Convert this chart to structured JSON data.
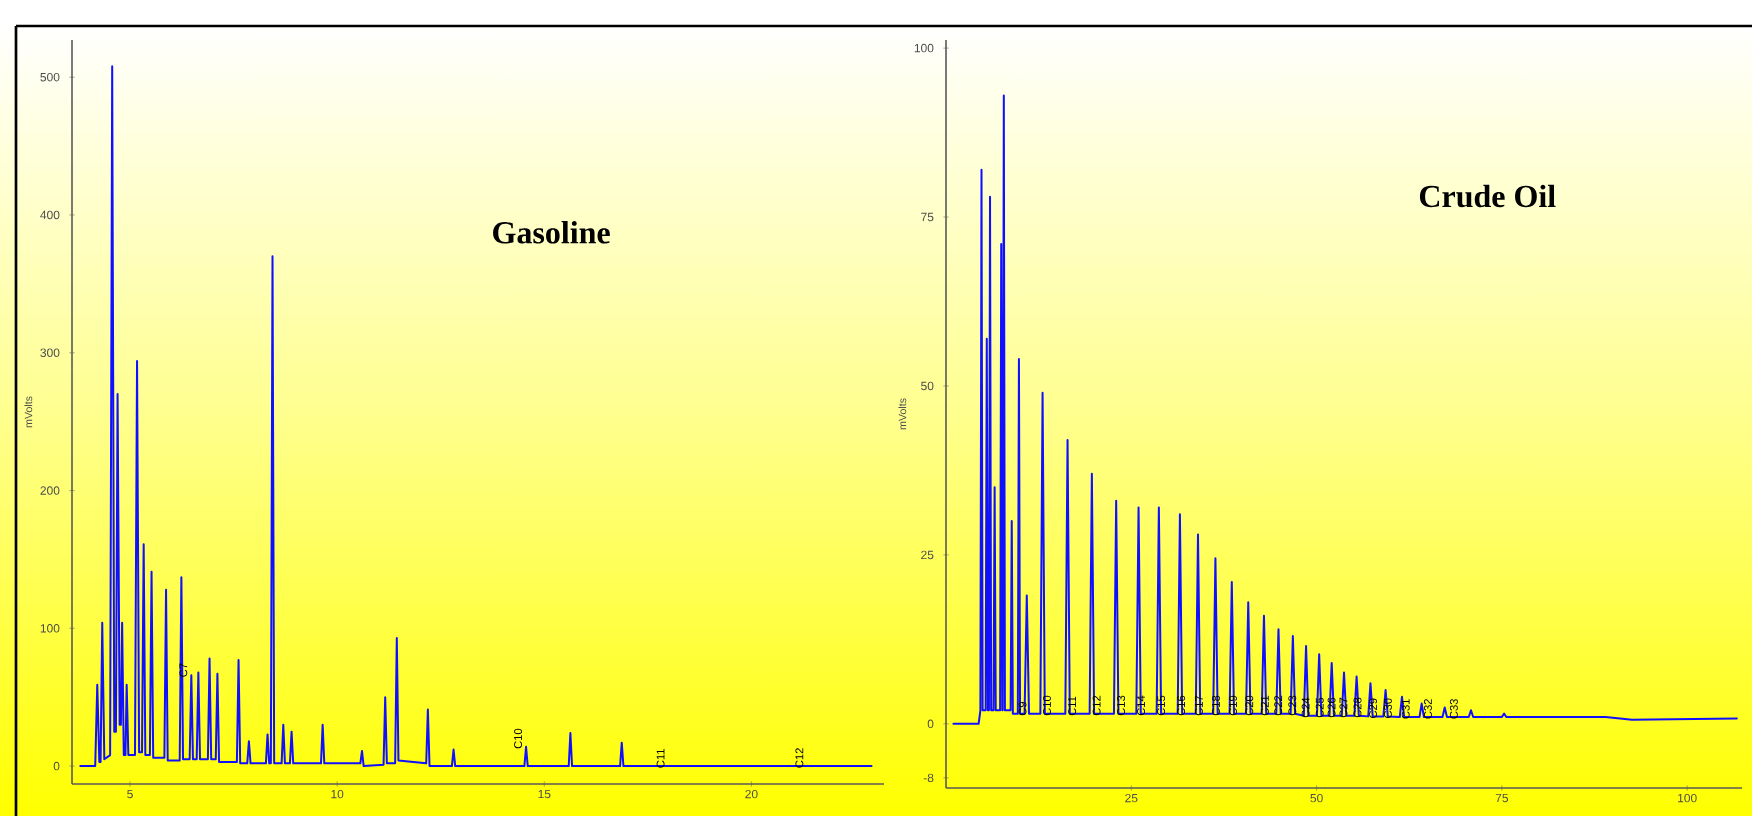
{
  "chart_data": [
    {
      "type": "line",
      "title": "Gasoline",
      "ylabel": "mVolts",
      "xlim": [
        3.6,
        23.2
      ],
      "ylim": [
        -13,
        527
      ],
      "xticks": [
        5,
        10,
        15,
        20
      ],
      "yticks": [
        0,
        100,
        200,
        300,
        400,
        500
      ],
      "series": [
        {
          "color": "#1010ff",
          "x": [
            3.8,
            4.16,
            4.21,
            4.26,
            4.29,
            4.33,
            4.38,
            4.52,
            4.57,
            4.62,
            4.66,
            4.7,
            4.75,
            4.78,
            4.81,
            4.85,
            4.89,
            4.92,
            4.96,
            5.12,
            5.17,
            5.22,
            5.29,
            5.33,
            5.37,
            5.48,
            5.52,
            5.56,
            5.83,
            5.87,
            5.91,
            6.2,
            6.24,
            6.28,
            6.44,
            6.48,
            6.52,
            6.61,
            6.65,
            6.69,
            6.88,
            6.92,
            6.96,
            7.07,
            7.11,
            7.15,
            7.58,
            7.62,
            7.66,
            7.83,
            7.87,
            7.91,
            8.28,
            8.32,
            8.36,
            8.4,
            8.44,
            8.48,
            8.66,
            8.7,
            8.74,
            8.86,
            8.9,
            8.94,
            9.61,
            9.65,
            9.69,
            10.56,
            10.6,
            10.64,
            11.12,
            11.16,
            11.2,
            11.4,
            11.44,
            11.48,
            12.15,
            12.19,
            12.23,
            12.77,
            12.81,
            12.85,
            14.52,
            14.56,
            14.6,
            15.59,
            15.63,
            15.67,
            16.83,
            16.87,
            16.91,
            22.9
          ],
          "values": [
            0,
            0,
            59,
            3,
            3,
            104,
            5,
            8,
            508,
            25,
            25,
            270,
            30,
            30,
            104,
            8,
            8,
            59,
            8,
            8,
            294,
            10,
            10,
            161,
            8,
            8,
            141,
            6,
            6,
            128,
            4,
            4,
            137,
            5,
            5,
            66,
            5,
            5,
            68,
            5,
            5,
            78,
            5,
            5,
            67,
            3,
            3,
            77,
            2,
            2,
            18,
            2,
            2,
            23,
            2,
            2,
            370,
            2,
            2,
            30,
            2,
            2,
            25,
            2,
            2,
            30,
            2,
            2,
            11,
            0,
            1,
            50,
            2,
            2,
            93,
            4,
            2,
            41,
            0,
            0,
            12,
            0,
            0,
            14,
            0,
            0,
            24,
            0,
            0,
            17,
            0,
            0
          ]
        }
      ],
      "annotations": [
        {
          "text": "C7",
          "x": 6.48,
          "y": 66
        },
        {
          "text": "C10",
          "x": 14.56,
          "y": 14
        },
        {
          "text": "C11",
          "x": 18.0,
          "y": 0
        },
        {
          "text": "C12",
          "x": 21.35,
          "y": 0
        }
      ]
    },
    {
      "type": "line",
      "title": "Crude Oil",
      "ylabel": "mVolts",
      "xlim": [
        0,
        107.4
      ],
      "ylim": [
        -9.5,
        101.2
      ],
      "xticks": [
        25,
        50,
        75,
        100
      ],
      "yticks": [
        -8,
        0,
        25,
        50,
        75,
        100
      ],
      "series": [
        {
          "color": "#1010ff",
          "x": [
            1.0,
            4.4,
            4.64,
            4.79,
            4.94,
            5.35,
            5.5,
            5.65,
            5.79,
            5.94,
            6.09,
            6.41,
            6.56,
            6.71,
            7.3,
            7.45,
            7.6,
            7.65,
            7.8,
            7.95,
            8.72,
            8.87,
            9.02,
            9.69,
            9.84,
            9.99,
            10.6,
            10.9,
            11.2,
            12.73,
            13.03,
            13.33,
            16.1,
            16.4,
            16.7,
            19.38,
            19.68,
            19.98,
            22.66,
            22.96,
            23.26,
            25.68,
            25.98,
            26.28,
            28.42,
            28.72,
            29.02,
            31.26,
            31.56,
            31.86,
            33.7,
            34.0,
            34.3,
            36.05,
            36.35,
            36.65,
            38.26,
            38.56,
            38.86,
            40.48,
            40.78,
            41.08,
            42.6,
            42.9,
            43.2,
            44.56,
            44.86,
            45.16,
            46.5,
            46.8,
            47.1,
            48.28,
            48.58,
            48.88,
            50.05,
            50.35,
            50.65,
            51.74,
            52.04,
            52.34,
            53.4,
            53.7,
            54.0,
            55.1,
            55.4,
            55.7,
            56.97,
            57.27,
            57.57,
            59.01,
            59.31,
            59.61,
            61.22,
            61.52,
            61.82,
            63.88,
            64.18,
            64.48,
            66.99,
            67.29,
            67.59,
            70.53,
            70.83,
            71.13,
            75.0,
            75.3,
            75.6,
            89.0,
            92.55,
            106.7
          ],
          "values": [
            0,
            0,
            2,
            82,
            2,
            2,
            57,
            2,
            2,
            78,
            2,
            2,
            35,
            2,
            2,
            71,
            2,
            2,
            93,
            2,
            2,
            30,
            1.5,
            1.5,
            54,
            1.5,
            1.5,
            19,
            1.5,
            1.5,
            49,
            1.5,
            1.5,
            42,
            1.5,
            1.5,
            37,
            1.5,
            1.5,
            33,
            1.5,
            1.5,
            32,
            1.5,
            1.5,
            32,
            1.5,
            1.5,
            31,
            1.5,
            1.5,
            28,
            1.5,
            1.5,
            24.5,
            1.5,
            1.5,
            21,
            1.5,
            1.5,
            18,
            1.5,
            1.5,
            16,
            1.5,
            1.5,
            14,
            1.5,
            1.5,
            13,
            1.5,
            1.2,
            11.5,
            1.2,
            1.2,
            10.3,
            1.2,
            1.2,
            9,
            1.2,
            1.2,
            7.6,
            1.2,
            1.2,
            7,
            1.2,
            1.1,
            6,
            1.1,
            1.1,
            5,
            1.1,
            1,
            4,
            1,
            1,
            3,
            1,
            1,
            2.4,
            1,
            1,
            2,
            1,
            1,
            1.5,
            1,
            1,
            0.6,
            0.8
          ]
        }
      ],
      "annotations": [
        {
          "text": "C9",
          "x": 11.4,
          "y": 1.5
        },
        {
          "text": "C10",
          "x": 14.7,
          "y": 1.5
        },
        {
          "text": "C11",
          "x": 18.1,
          "y": 1.5
        },
        {
          "text": "C12",
          "x": 21.4,
          "y": 1.5
        },
        {
          "text": "C13",
          "x": 24.7,
          "y": 1.5
        },
        {
          "text": "C14",
          "x": 27.4,
          "y": 1.5
        },
        {
          "text": "C15",
          "x": 30.1,
          "y": 1.5
        },
        {
          "text": "C16",
          "x": 32.8,
          "y": 1.5
        },
        {
          "text": "C17",
          "x": 35.2,
          "y": 1.5
        },
        {
          "text": "C18",
          "x": 37.5,
          "y": 1.5
        },
        {
          "text": "C19",
          "x": 39.8,
          "y": 1.5
        },
        {
          "text": "C20",
          "x": 42.0,
          "y": 1.5
        },
        {
          "text": "C21",
          "x": 44.1,
          "y": 1.5
        },
        {
          "text": "C22",
          "x": 45.9,
          "y": 1.5
        },
        {
          "text": "C23",
          "x": 47.8,
          "y": 1.5
        },
        {
          "text": "C24",
          "x": 49.6,
          "y": 1.2
        },
        {
          "text": "C25",
          "x": 51.5,
          "y": 1.2
        },
        {
          "text": "C26",
          "x": 53.1,
          "y": 1.2
        },
        {
          "text": "C27",
          "x": 54.7,
          "y": 1.2
        },
        {
          "text": "C28",
          "x": 56.6,
          "y": 1.2
        },
        {
          "text": "C29",
          "x": 58.7,
          "y": 1.1
        },
        {
          "text": "C30",
          "x": 60.7,
          "y": 1.1
        },
        {
          "text": "C31",
          "x": 63.1,
          "y": 1
        },
        {
          "text": "C32",
          "x": 66.1,
          "y": 1
        },
        {
          "text": "C33",
          "x": 69.6,
          "y": 1
        }
      ]
    }
  ]
}
